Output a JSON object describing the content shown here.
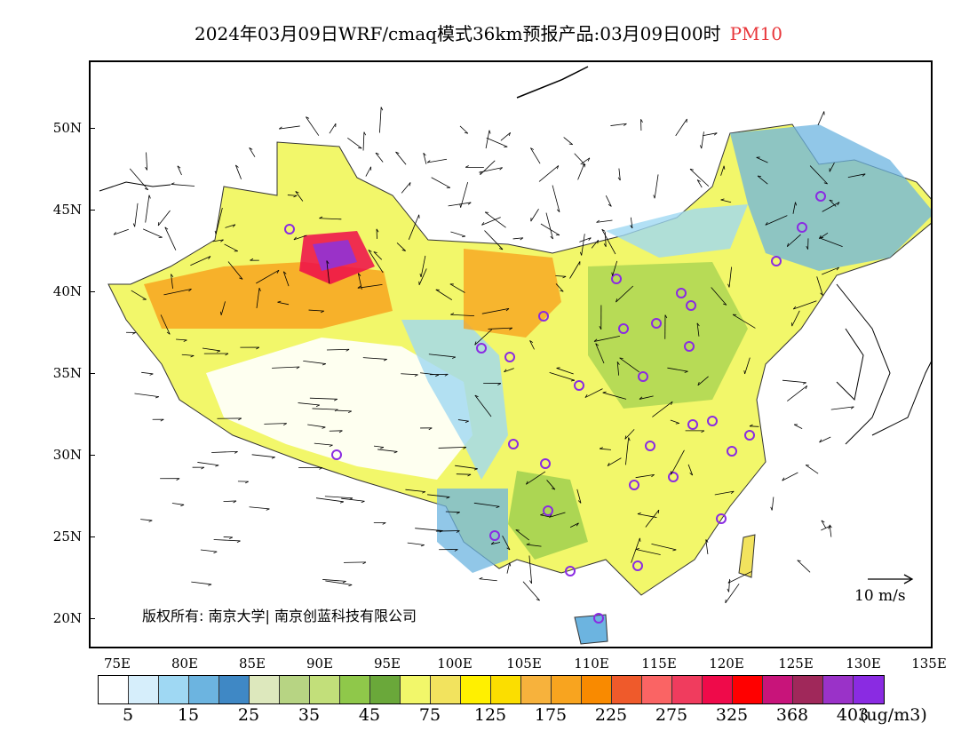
{
  "title": {
    "main": "2024年03月09日WRF/cmaq模式36km预报产品:03月09日00时",
    "pollutant": "PM10"
  },
  "map": {
    "lat_labels": [
      "50N",
      "45N",
      "40N",
      "35N",
      "30N",
      "25N",
      "20N"
    ],
    "lon_labels": [
      "75E",
      "80E",
      "85E",
      "90E",
      "95E",
      "100E",
      "105E",
      "110E",
      "115E",
      "120E",
      "125E",
      "130E",
      "135E"
    ],
    "copyright": "版权所有: 南京大学| 南京创蓝科技有限公司",
    "wind_reference_label": "10 m/s"
  },
  "colorbar": {
    "colors": [
      "#ffffff",
      "#d6eefb",
      "#9fd8f3",
      "#6cb4e0",
      "#3f88c5",
      "#dde8bd",
      "#b7d483",
      "#c2df7a",
      "#8fc84a",
      "#6aa83a",
      "#f2f76a",
      "#f2e35e",
      "#fff000",
      "#fbde00",
      "#f7b23c",
      "#f8a41f",
      "#f98a00",
      "#ef5a2b",
      "#fa6464",
      "#f03c5e",
      "#ef0a4a",
      "#ff0000",
      "#c8147a",
      "#a0285a",
      "#9a32c8",
      "#8a2be2"
    ],
    "labels": [
      "5",
      "15",
      "25",
      "35",
      "45",
      "75",
      "125",
      "175",
      "225",
      "275",
      "325",
      "368",
      "403"
    ],
    "unit": "(ug/m3)"
  }
}
